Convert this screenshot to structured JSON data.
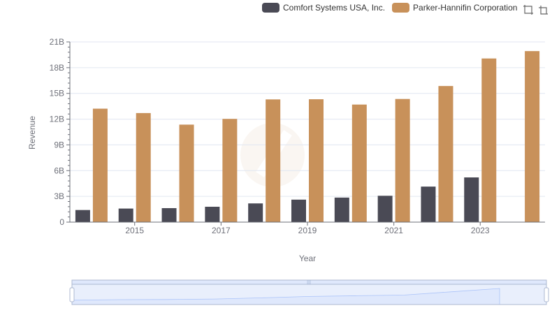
{
  "legend": {
    "items": [
      {
        "label": "Comfort Systems USA, Inc.",
        "color": "#4a4a55"
      },
      {
        "label": "Parker-Hannifin Corporation",
        "color": "#c8915a"
      }
    ]
  },
  "toolbox": {
    "icons": [
      "zoom-icon",
      "reset-zoom-icon"
    ]
  },
  "colors": {
    "axis": "#6e7079",
    "grid": "#e0e6f1",
    "slider_border": "#acb8d1",
    "slider_fill": "#dfe8fc",
    "slider_line": "#8fb0f7"
  },
  "chart_data": {
    "type": "bar",
    "ylabel": "Revenue",
    "xlabel": "Year",
    "categories": [
      "2014",
      "2015",
      "2016",
      "2017",
      "2018",
      "2019",
      "2020",
      "2021",
      "2022",
      "2023",
      "2024"
    ],
    "x_tick_labels": [
      "2015",
      "2017",
      "2019",
      "2021",
      "2023"
    ],
    "y_tick_labels": [
      "0",
      "3B",
      "6B",
      "9B",
      "12B",
      "15B",
      "18B",
      "21B"
    ],
    "ylim": [
      0,
      21
    ],
    "y_unit": "billions",
    "grid": true,
    "legend_position": "top-right",
    "series": [
      {
        "name": "Comfort Systems USA, Inc.",
        "color": "#4a4a55",
        "values": [
          1.41,
          1.58,
          1.63,
          1.79,
          2.18,
          2.62,
          2.86,
          3.07,
          4.14,
          5.21,
          null
        ]
      },
      {
        "name": "Parker-Hannifin Corporation",
        "color": "#c8915a",
        "values": [
          13.22,
          12.71,
          11.36,
          12.03,
          14.3,
          14.32,
          13.7,
          14.35,
          15.86,
          19.07,
          19.93
        ]
      }
    ]
  }
}
